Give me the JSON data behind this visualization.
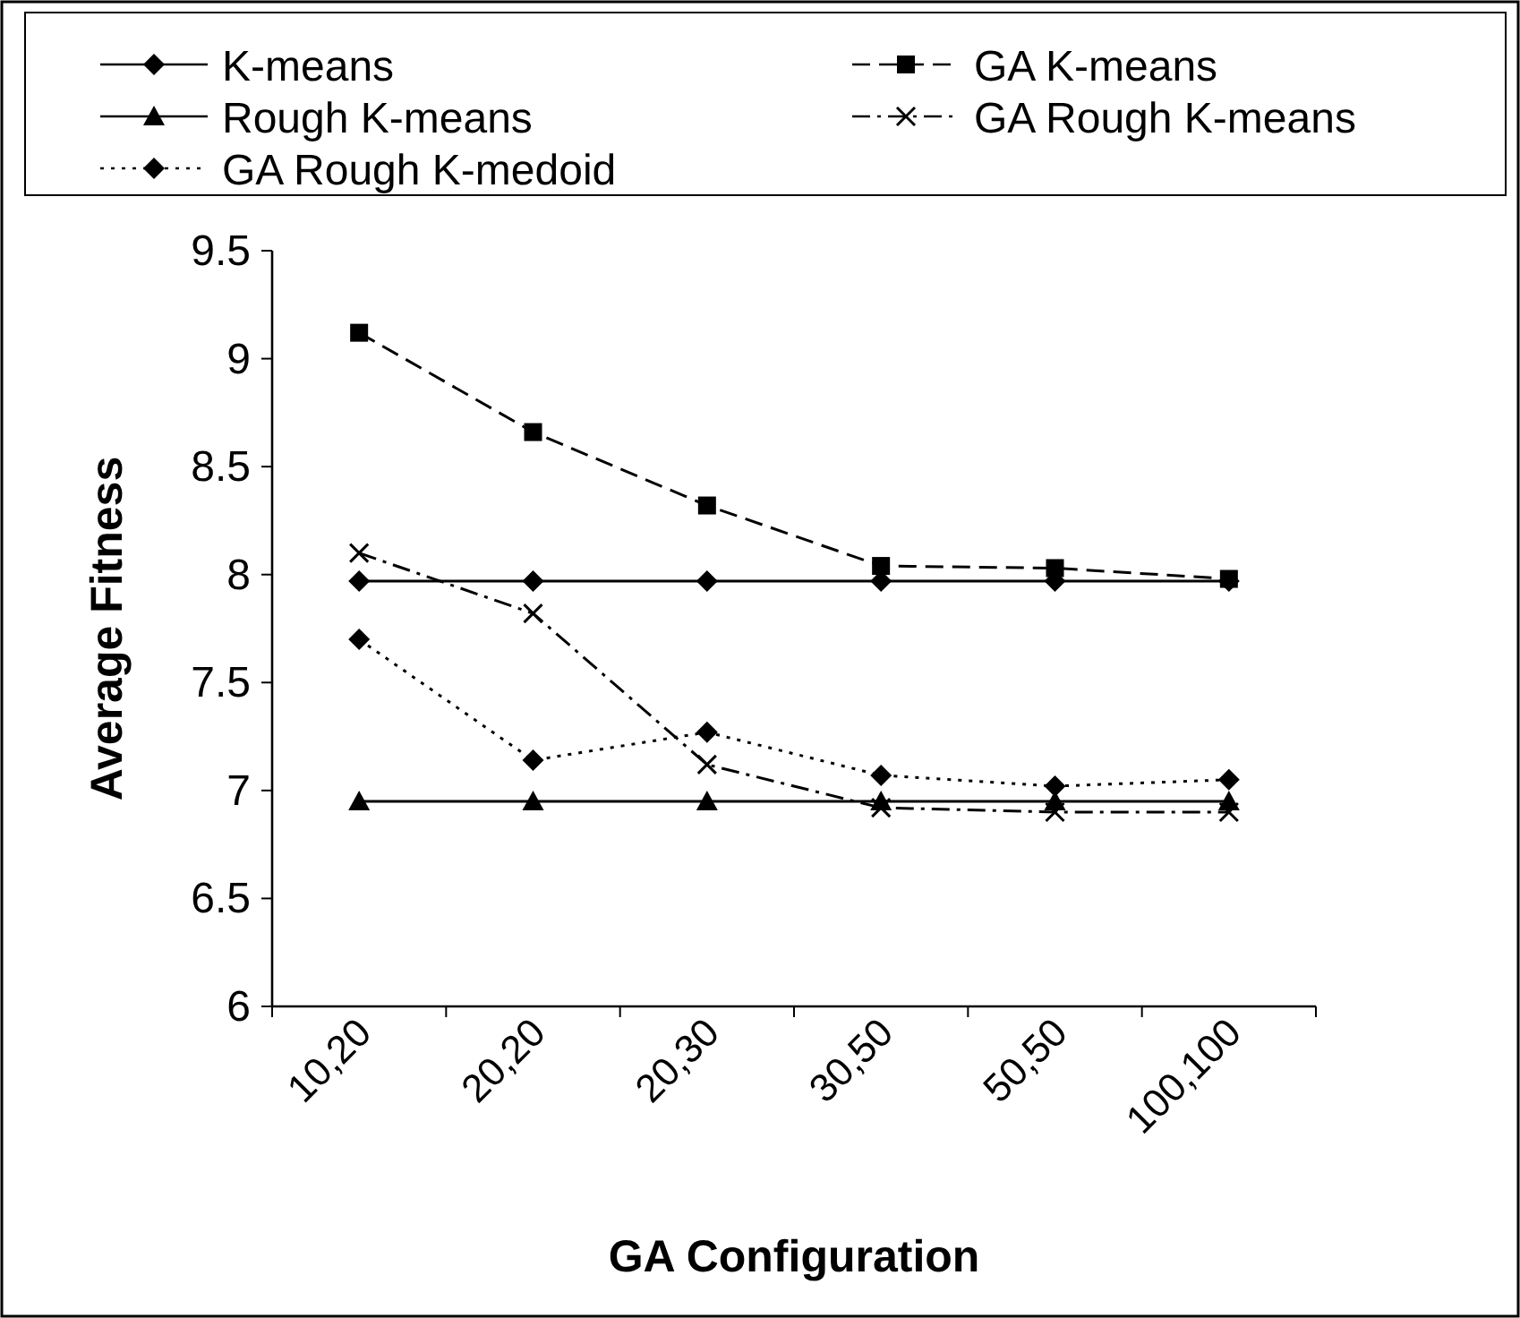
{
  "chart_data": {
    "type": "line",
    "xlabel": "GA Configuration",
    "ylabel": "Average Fitness",
    "categories": [
      "10,20",
      "20,20",
      "20,30",
      "30,50",
      "50,50",
      "100,100"
    ],
    "ylim": [
      6,
      9.5
    ],
    "yticks": [
      6,
      6.5,
      7,
      7.5,
      8,
      8.5,
      9,
      9.5
    ],
    "grid": false,
    "legend": "top",
    "series": [
      {
        "name": "K-means",
        "color": "#000000",
        "marker": "diamond",
        "line_style": "solid",
        "values": [
          7.97,
          7.97,
          7.97,
          7.97,
          7.97,
          7.97
        ]
      },
      {
        "name": "GA K-means",
        "color": "#000000",
        "marker": "square",
        "line_style": "dashed",
        "values": [
          9.12,
          8.66,
          8.32,
          8.04,
          8.03,
          7.98
        ]
      },
      {
        "name": "Rough K-means",
        "color": "#000000",
        "marker": "triangle",
        "line_style": "solid",
        "values": [
          6.95,
          6.95,
          6.95,
          6.95,
          6.95,
          6.95
        ]
      },
      {
        "name": "GA Rough K-means",
        "color": "#000000",
        "marker": "cross",
        "line_style": "dashdot",
        "values": [
          8.1,
          7.82,
          7.12,
          6.92,
          6.9,
          6.9
        ]
      },
      {
        "name": "GA Rough K-medoid",
        "color": "#000000",
        "marker": "diamond",
        "line_style": "dotted",
        "values": [
          7.7,
          7.14,
          7.27,
          7.07,
          7.02,
          7.05
        ]
      }
    ]
  }
}
